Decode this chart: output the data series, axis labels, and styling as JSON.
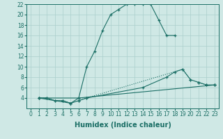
{
  "xlabel": "Humidex (Indice chaleur)",
  "xlim": [
    -0.5,
    23.5
  ],
  "ylim": [
    2,
    22
  ],
  "xticks": [
    0,
    1,
    2,
    3,
    4,
    5,
    6,
    7,
    8,
    9,
    10,
    11,
    12,
    13,
    14,
    15,
    16,
    17,
    18,
    19,
    20,
    21,
    22,
    23
  ],
  "yticks": [
    4,
    6,
    8,
    10,
    12,
    14,
    16,
    18,
    20,
    22
  ],
  "bg_color": "#cfe8e5",
  "line_color": "#1a6e65",
  "grid_color": "#aacfcc",
  "lines": [
    {
      "x": [
        1,
        2,
        3,
        4,
        5,
        6,
        7,
        8,
        9,
        10,
        11,
        12,
        13,
        14,
        15,
        16,
        17,
        18
      ],
      "y": [
        4,
        4,
        3.5,
        3.5,
        3,
        4,
        10,
        13,
        17,
        20,
        21,
        22,
        22,
        22,
        22,
        19,
        16,
        16
      ]
    },
    {
      "x": [
        1,
        2,
        3,
        4,
        5,
        6,
        7,
        19,
        20,
        21,
        22,
        23
      ],
      "y": [
        4,
        4,
        3.5,
        3.5,
        3,
        3.5,
        4,
        9.5,
        7.5,
        7,
        6.5,
        6.5
      ]
    },
    {
      "x": [
        1,
        6,
        23
      ],
      "y": [
        4,
        4,
        6.5
      ]
    },
    {
      "x": [
        1,
        5,
        6,
        7,
        14,
        17,
        18,
        19,
        20,
        21,
        22,
        23
      ],
      "y": [
        4,
        3,
        3.5,
        4,
        6,
        8,
        9,
        9.5,
        7.5,
        7,
        6.5,
        6.5
      ]
    }
  ],
  "tick_fontsize": 5.5,
  "xlabel_fontsize": 7
}
